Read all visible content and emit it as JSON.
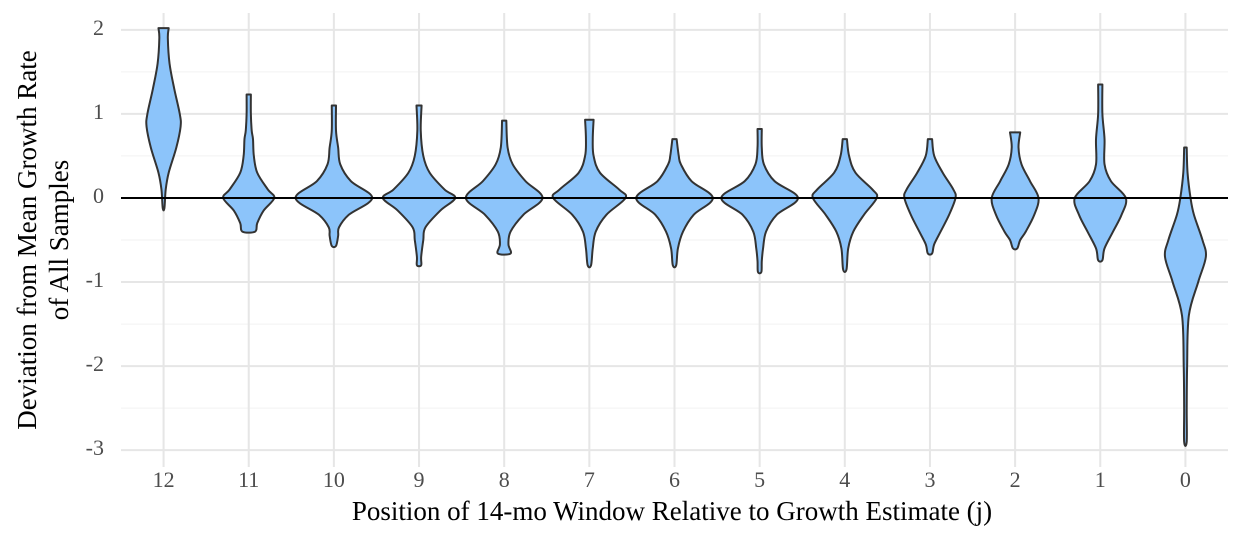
{
  "chart_data": {
    "type": "violin",
    "ylabel": [
      "Deviation from Mean Growth Rate",
      "of All Samples"
    ],
    "xlabel": "Position of 14-mo Window Relative to Growth Estimate (j)",
    "categories": [
      "12",
      "11",
      "10",
      "9",
      "8",
      "7",
      "6",
      "5",
      "4",
      "3",
      "2",
      "1",
      "0"
    ],
    "color": "#8cc4fa",
    "ylim": [
      -3.2,
      2.2
    ],
    "yticks": [
      -3,
      -2,
      -1,
      0,
      1,
      2
    ],
    "grid": true,
    "hline": 0,
    "violins": [
      {
        "y": [
          2.02,
          1.9,
          1.6,
          1.3,
          1.0,
          0.85,
          0.6,
          0.3,
          0.1,
          -0.12
        ],
        "density": [
          0.12,
          0.1,
          0.14,
          0.25,
          0.38,
          0.4,
          0.3,
          0.12,
          0.05,
          0.02
        ]
      },
      {
        "y": [
          1.23,
          1.0,
          0.8,
          0.7,
          0.5,
          0.3,
          0.1,
          0,
          -0.15,
          -0.3,
          -0.4
        ],
        "density": [
          0.05,
          0.05,
          0.07,
          0.1,
          0.12,
          0.2,
          0.45,
          0.6,
          0.35,
          0.2,
          0.15
        ]
      },
      {
        "y": [
          1.1,
          0.8,
          0.6,
          0.4,
          0.2,
          0,
          -0.2,
          -0.35,
          -0.45,
          -0.57
        ],
        "density": [
          0.05,
          0.05,
          0.1,
          0.15,
          0.4,
          0.9,
          0.35,
          0.12,
          0.1,
          0.05
        ]
      },
      {
        "y": [
          1.1,
          0.8,
          0.5,
          0.3,
          0.1,
          0,
          -0.15,
          -0.35,
          -0.5,
          -0.7,
          -0.8
        ],
        "density": [
          0.06,
          0.04,
          0.1,
          0.25,
          0.6,
          0.85,
          0.5,
          0.15,
          0.1,
          0.05,
          0.05
        ]
      },
      {
        "y": [
          0.92,
          0.6,
          0.4,
          0.2,
          0,
          -0.2,
          -0.4,
          -0.55,
          -0.66
        ],
        "density": [
          0.05,
          0.08,
          0.2,
          0.5,
          0.9,
          0.45,
          0.15,
          0.1,
          0.15
        ]
      },
      {
        "y": [
          0.93,
          0.7,
          0.5,
          0.3,
          0.1,
          0,
          -0.2,
          -0.4,
          -0.6,
          -0.8
        ],
        "density": [
          0.1,
          0.08,
          0.1,
          0.25,
          0.7,
          0.85,
          0.4,
          0.15,
          0.08,
          0.04
        ]
      },
      {
        "y": [
          0.7,
          0.5,
          0.4,
          0.2,
          0,
          -0.2,
          -0.4,
          -0.6,
          -0.8
        ],
        "density": [
          0.05,
          0.1,
          0.15,
          0.4,
          0.9,
          0.45,
          0.2,
          0.08,
          0.04
        ]
      },
      {
        "y": [
          0.82,
          0.6,
          0.4,
          0.2,
          0,
          -0.2,
          -0.4,
          -0.6,
          -0.75,
          -0.88
        ],
        "density": [
          0.05,
          0.05,
          0.1,
          0.35,
          0.9,
          0.4,
          0.15,
          0.08,
          0.05,
          0.04
        ]
      },
      {
        "y": [
          0.7,
          0.5,
          0.3,
          0.1,
          0,
          -0.2,
          -0.4,
          -0.6,
          -0.85
        ],
        "density": [
          0.05,
          0.1,
          0.25,
          0.65,
          0.75,
          0.45,
          0.2,
          0.08,
          0.04
        ]
      },
      {
        "y": [
          0.7,
          0.5,
          0.3,
          0.1,
          0,
          -0.2,
          -0.4,
          -0.55,
          -0.66
        ],
        "density": [
          0.05,
          0.1,
          0.3,
          0.55,
          0.6,
          0.45,
          0.25,
          0.1,
          0.05
        ]
      },
      {
        "y": [
          0.78,
          0.6,
          0.4,
          0.2,
          0,
          -0.2,
          -0.4,
          -0.5,
          -0.6
        ],
        "density": [
          0.12,
          0.08,
          0.15,
          0.35,
          0.55,
          0.45,
          0.25,
          0.12,
          0.05
        ]
      },
      {
        "y": [
          1.35,
          1.0,
          0.7,
          0.4,
          0.2,
          0,
          -0.2,
          -0.4,
          -0.6,
          -0.74
        ],
        "density": [
          0.05,
          0.05,
          0.1,
          0.1,
          0.25,
          0.6,
          0.5,
          0.3,
          0.1,
          0.05
        ]
      },
      {
        "y": [
          0.6,
          0.3,
          0,
          -0.2,
          -0.5,
          -0.7,
          -1.0,
          -1.4,
          -2.0,
          -2.5,
          -2.9
        ],
        "density": [
          0.03,
          0.05,
          0.12,
          0.2,
          0.4,
          0.48,
          0.3,
          0.08,
          0.04,
          0.03,
          0.03
        ]
      }
    ]
  }
}
